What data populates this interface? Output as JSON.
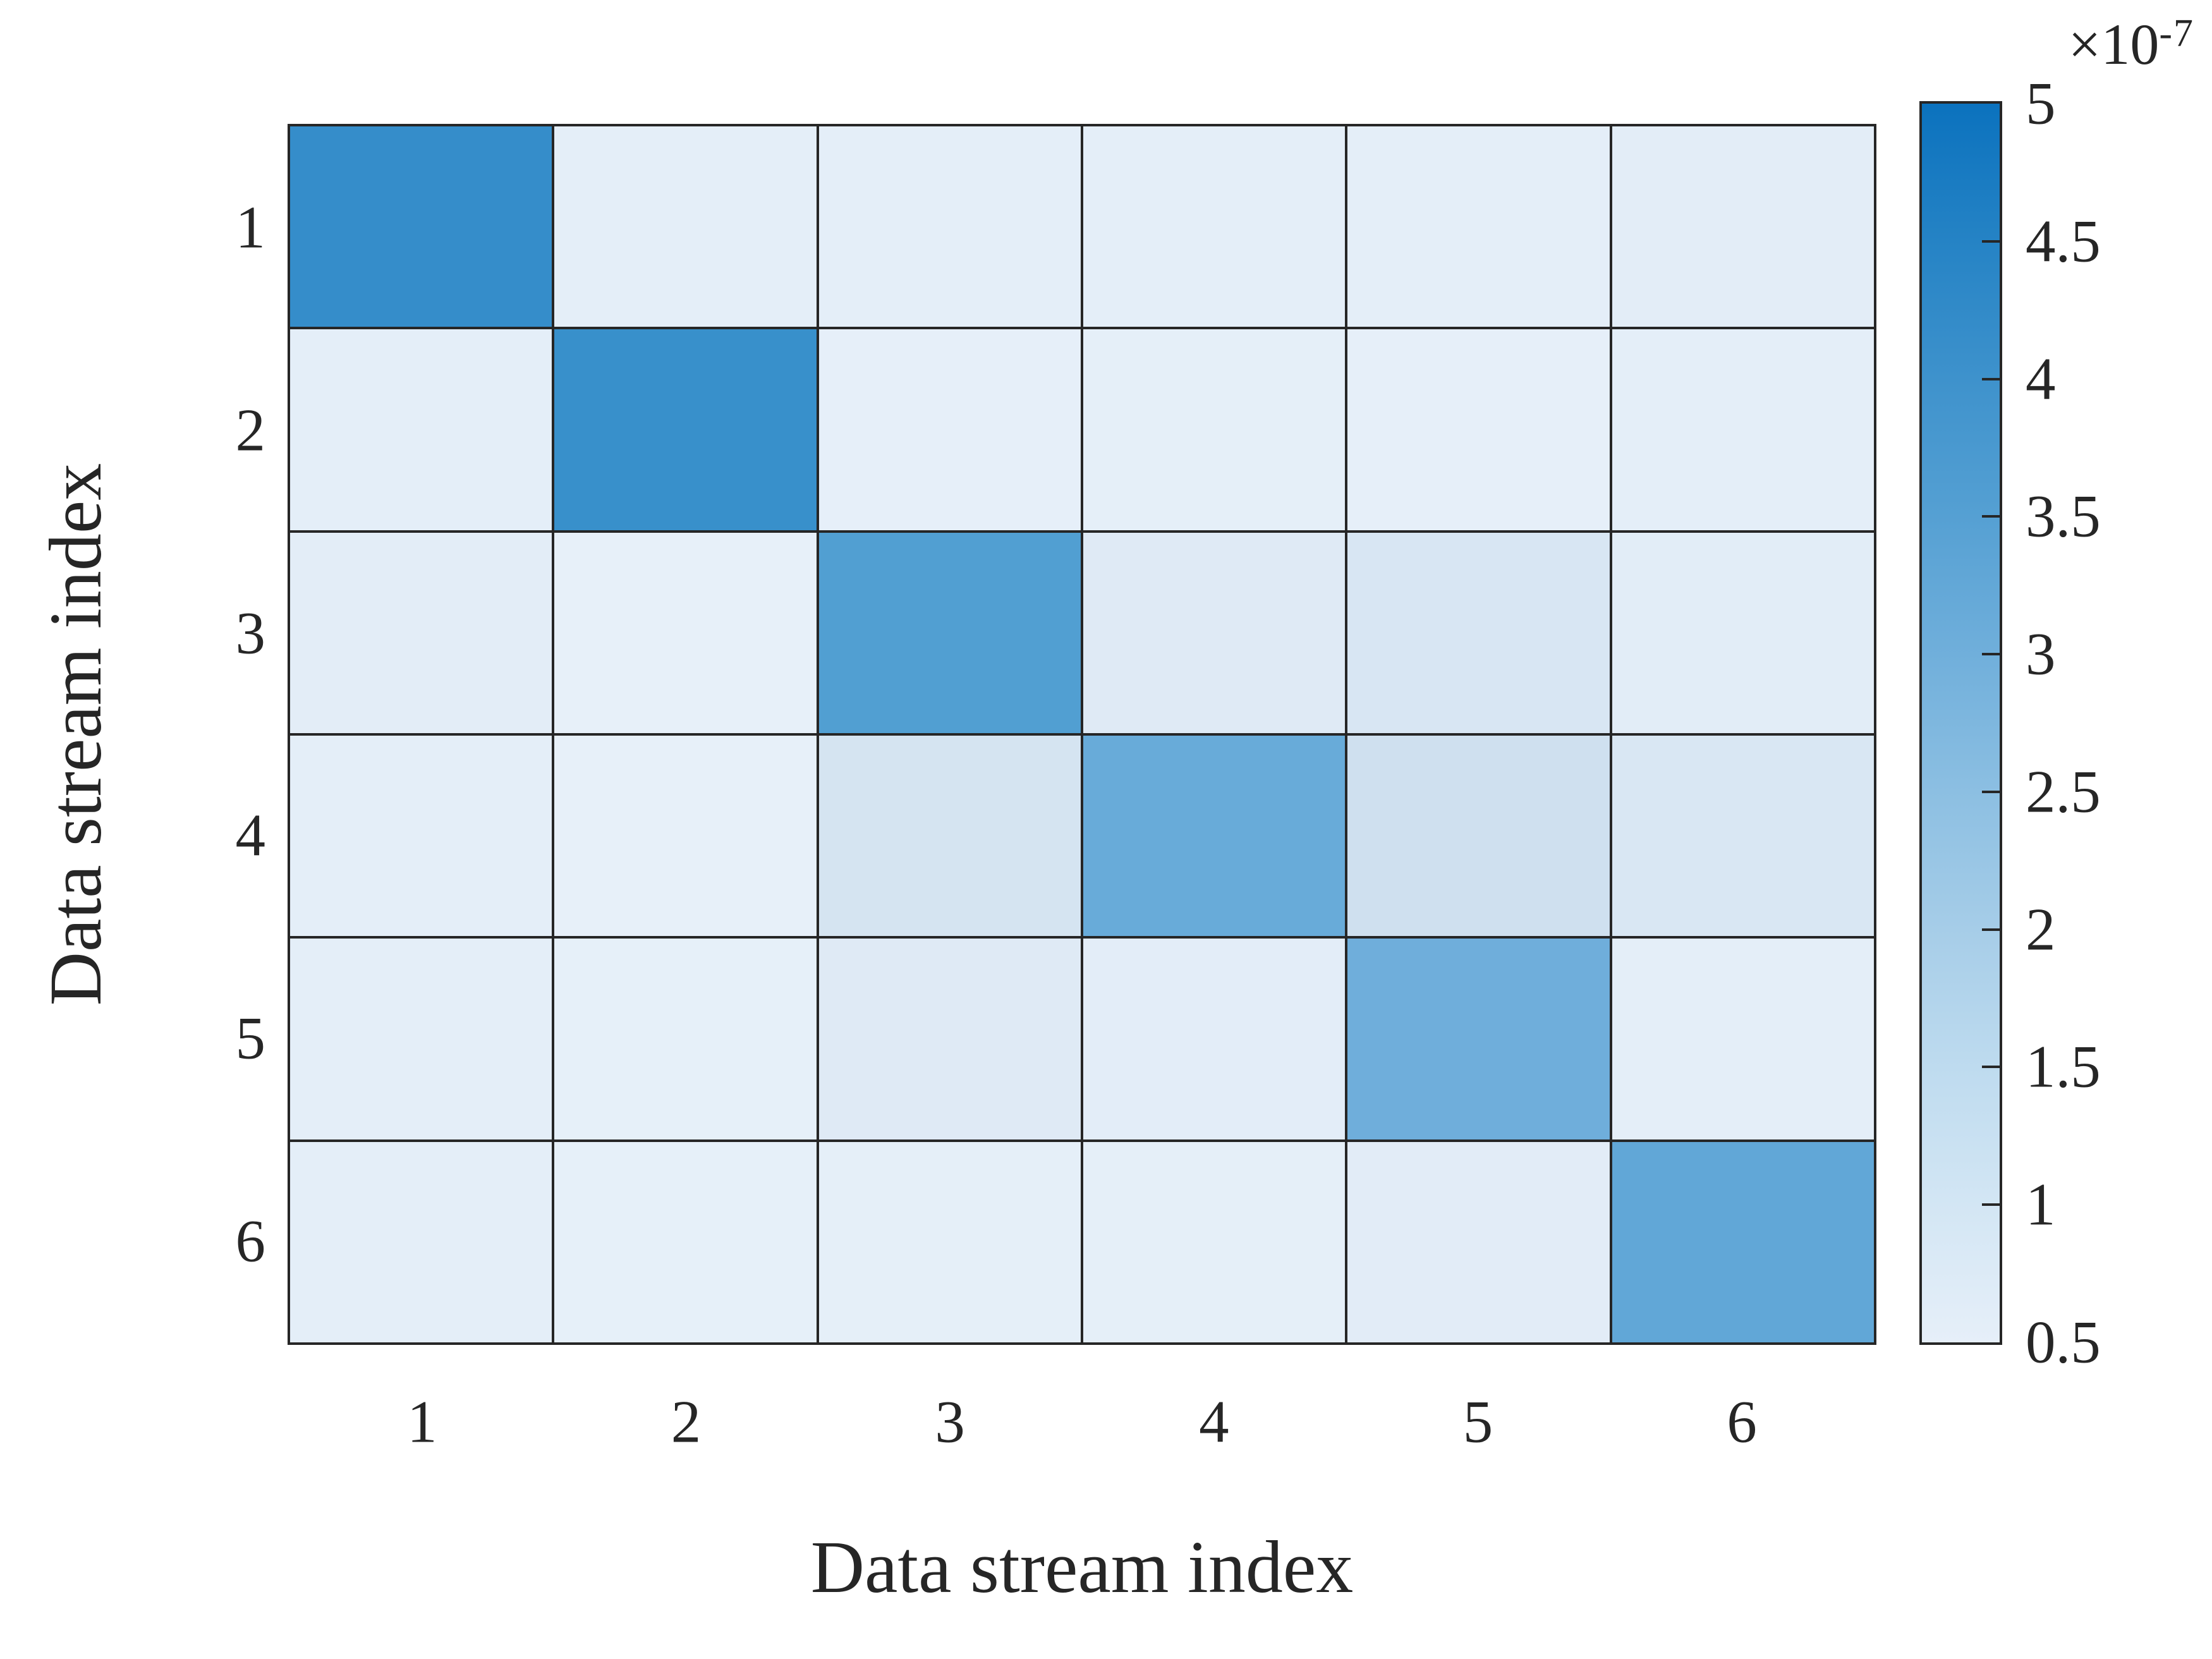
{
  "figure": {
    "background": "#ffffff",
    "axes_color": "#262626",
    "grid_line_color": "#262626"
  },
  "chart_data": {
    "type": "heatmap",
    "title": "",
    "xlabel": "Data stream index",
    "ylabel": "Data stream index",
    "x_ticks": [
      "1",
      "2",
      "3",
      "4",
      "5",
      "6"
    ],
    "y_ticks": [
      "1",
      "2",
      "3",
      "4",
      "5",
      "6"
    ],
    "rows": 6,
    "cols": 6,
    "values_unit_multiplier": "1e-7",
    "values_note": "estimated from colorbar, in units of 1e-7",
    "values": [
      [
        4.2,
        0.6,
        0.6,
        0.6,
        0.6,
        0.6
      ],
      [
        0.6,
        4.1,
        0.6,
        0.6,
        0.6,
        0.6
      ],
      [
        0.65,
        0.55,
        3.5,
        0.8,
        1.0,
        0.65
      ],
      [
        0.65,
        0.55,
        1.1,
        3.1,
        1.15,
        0.95
      ],
      [
        0.6,
        0.55,
        0.8,
        0.6,
        3.0,
        0.6
      ],
      [
        0.6,
        0.55,
        0.6,
        0.6,
        0.65,
        3.3
      ]
    ],
    "cell_colors": [
      [
        "#358DCA",
        "#E4EEF8",
        "#E4EEF8",
        "#E4EEF8",
        "#E4EEF8",
        "#E3EDF7"
      ],
      [
        "#E4EEF8",
        "#3890CB",
        "#E6EFF9",
        "#E5EFF8",
        "#E6EFF9",
        "#E4EEF8"
      ],
      [
        "#E3EDF7",
        "#E7F0F9",
        "#519FD2",
        "#DFEAF5",
        "#D8E6F3",
        "#E2EDF7"
      ],
      [
        "#E4EEF8",
        "#E7F0F9",
        "#D5E4F1",
        "#68ABD9",
        "#CFE0EF",
        "#D9E7F3"
      ],
      [
        "#E4EEF8",
        "#E6F0F9",
        "#DFEAF5",
        "#E3EDF8",
        "#6FAEDB",
        "#E4EEF8"
      ],
      [
        "#E4EEF8",
        "#E6F0F9",
        "#E5EFF8",
        "#E5EFF8",
        "#E2ECF7",
        "#61A7D7"
      ]
    ],
    "colorbar": {
      "min": 0.5,
      "max": 5,
      "tick_labels": [
        "5",
        "4.5",
        "4",
        "3.5",
        "3",
        "2.5",
        "2",
        "1.5",
        "1",
        "0.5"
      ],
      "exponent_base": "×10",
      "exponent_power": "-7",
      "gradient_bottom_to_top": [
        "#E6EFF9",
        "#D3E6F4",
        "#BEDBEF",
        "#A6CDE8",
        "#8CBFE2",
        "#70AFDB",
        "#55A0D3",
        "#3E92CC",
        "#2583C5",
        "#0B72BE"
      ],
      "position": "right",
      "grid": false,
      "legend": false
    }
  }
}
